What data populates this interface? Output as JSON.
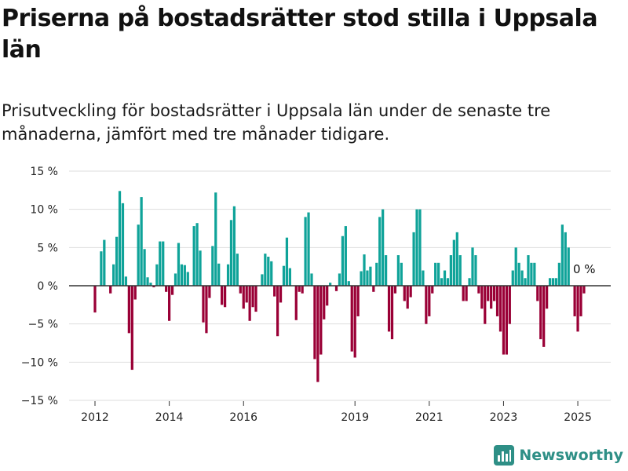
{
  "header": {
    "title": "Priserna på bostadsrätter stod stilla i Uppsala län",
    "subtitle": "Prisutveckling för bostadsrätter i Uppsala län under de senaste tre månaderna, jämfört med tre månader tidigare."
  },
  "brand": {
    "name": "Newsworthy",
    "icon": "newsworthy-logo-icon",
    "color": "#2e8f86"
  },
  "chart_data": {
    "type": "bar",
    "title": "Priserna på bostadsrätter stod stilla i Uppsala län",
    "subtitle": "Prisutveckling för bostadsrätter i Uppsala län under de senaste tre månaderna, jämfört med tre månader tidigare.",
    "xlabel": "",
    "ylabel": "",
    "unit": "%",
    "ylim": [
      -15,
      15
    ],
    "yticks": [
      15,
      10,
      5,
      0,
      -5,
      -10,
      -15
    ],
    "ytick_labels": [
      "15 %",
      "10 %",
      "5 %",
      "0 %",
      "−5 %",
      "−10 %",
      "−15 %"
    ],
    "xticks": [
      "2012",
      "2014",
      "2016",
      "2019",
      "2021",
      "2023",
      "2025"
    ],
    "grid": true,
    "colors": {
      "positive": "#0fa399",
      "negative": "#9a0036",
      "grid": "#dddddd",
      "axis": "#333333"
    },
    "annotation": "0 %",
    "start": "2012-01",
    "end": "2025-02",
    "values": [
      -3.5,
      0,
      4.5,
      6,
      0,
      -1,
      2.8,
      6.4,
      12.4,
      10.8,
      1.2,
      -6.2,
      -11,
      -1.8,
      8,
      11.6,
      4.8,
      1.1,
      0.4,
      -0.2,
      2.8,
      5.8,
      5.8,
      -0.8,
      -4.6,
      -1.2,
      1.6,
      5.6,
      2.8,
      2.7,
      1.8,
      0,
      7.8,
      8.2,
      4.6,
      -4.8,
      -6.2,
      -1.6,
      5.2,
      12.2,
      2.9,
      -2.5,
      -2.8,
      2.8,
      8.6,
      10.4,
      4.2,
      -1,
      -3,
      -2.2,
      -4.6,
      -2.8,
      -3.4,
      0,
      1.5,
      4.2,
      3.8,
      3.2,
      -1.4,
      -6.6,
      -2.2,
      2.6,
      6.3,
      2.3,
      0,
      -4.5,
      -0.8,
      -1,
      9,
      9.6,
      1.6,
      -9.6,
      -12.6,
      -9,
      -4.4,
      -2.6,
      0.4,
      0,
      -0.7,
      1.6,
      6.5,
      7.8,
      0.6,
      -8.6,
      -9.4,
      -4,
      1.9,
      4.1,
      2,
      2.5,
      -0.8,
      3,
      9,
      10,
      4,
      -6,
      -7,
      -1,
      4,
      3,
      -2,
      -3,
      -1.5,
      7,
      10,
      10,
      2,
      -5,
      -4,
      -1,
      3,
      3,
      1,
      2,
      1,
      4,
      6,
      7,
      4,
      -2,
      -2,
      1,
      5,
      4,
      -1,
      -3,
      -5,
      -2,
      -3,
      -2,
      -4,
      -6,
      -9,
      -9,
      -5,
      2,
      5,
      3,
      2,
      1,
      4,
      3,
      3,
      -2,
      -7,
      -8,
      -3,
      1,
      1,
      1,
      3,
      8,
      7,
      5,
      0,
      -4,
      -6,
      -4,
      -1
    ]
  }
}
